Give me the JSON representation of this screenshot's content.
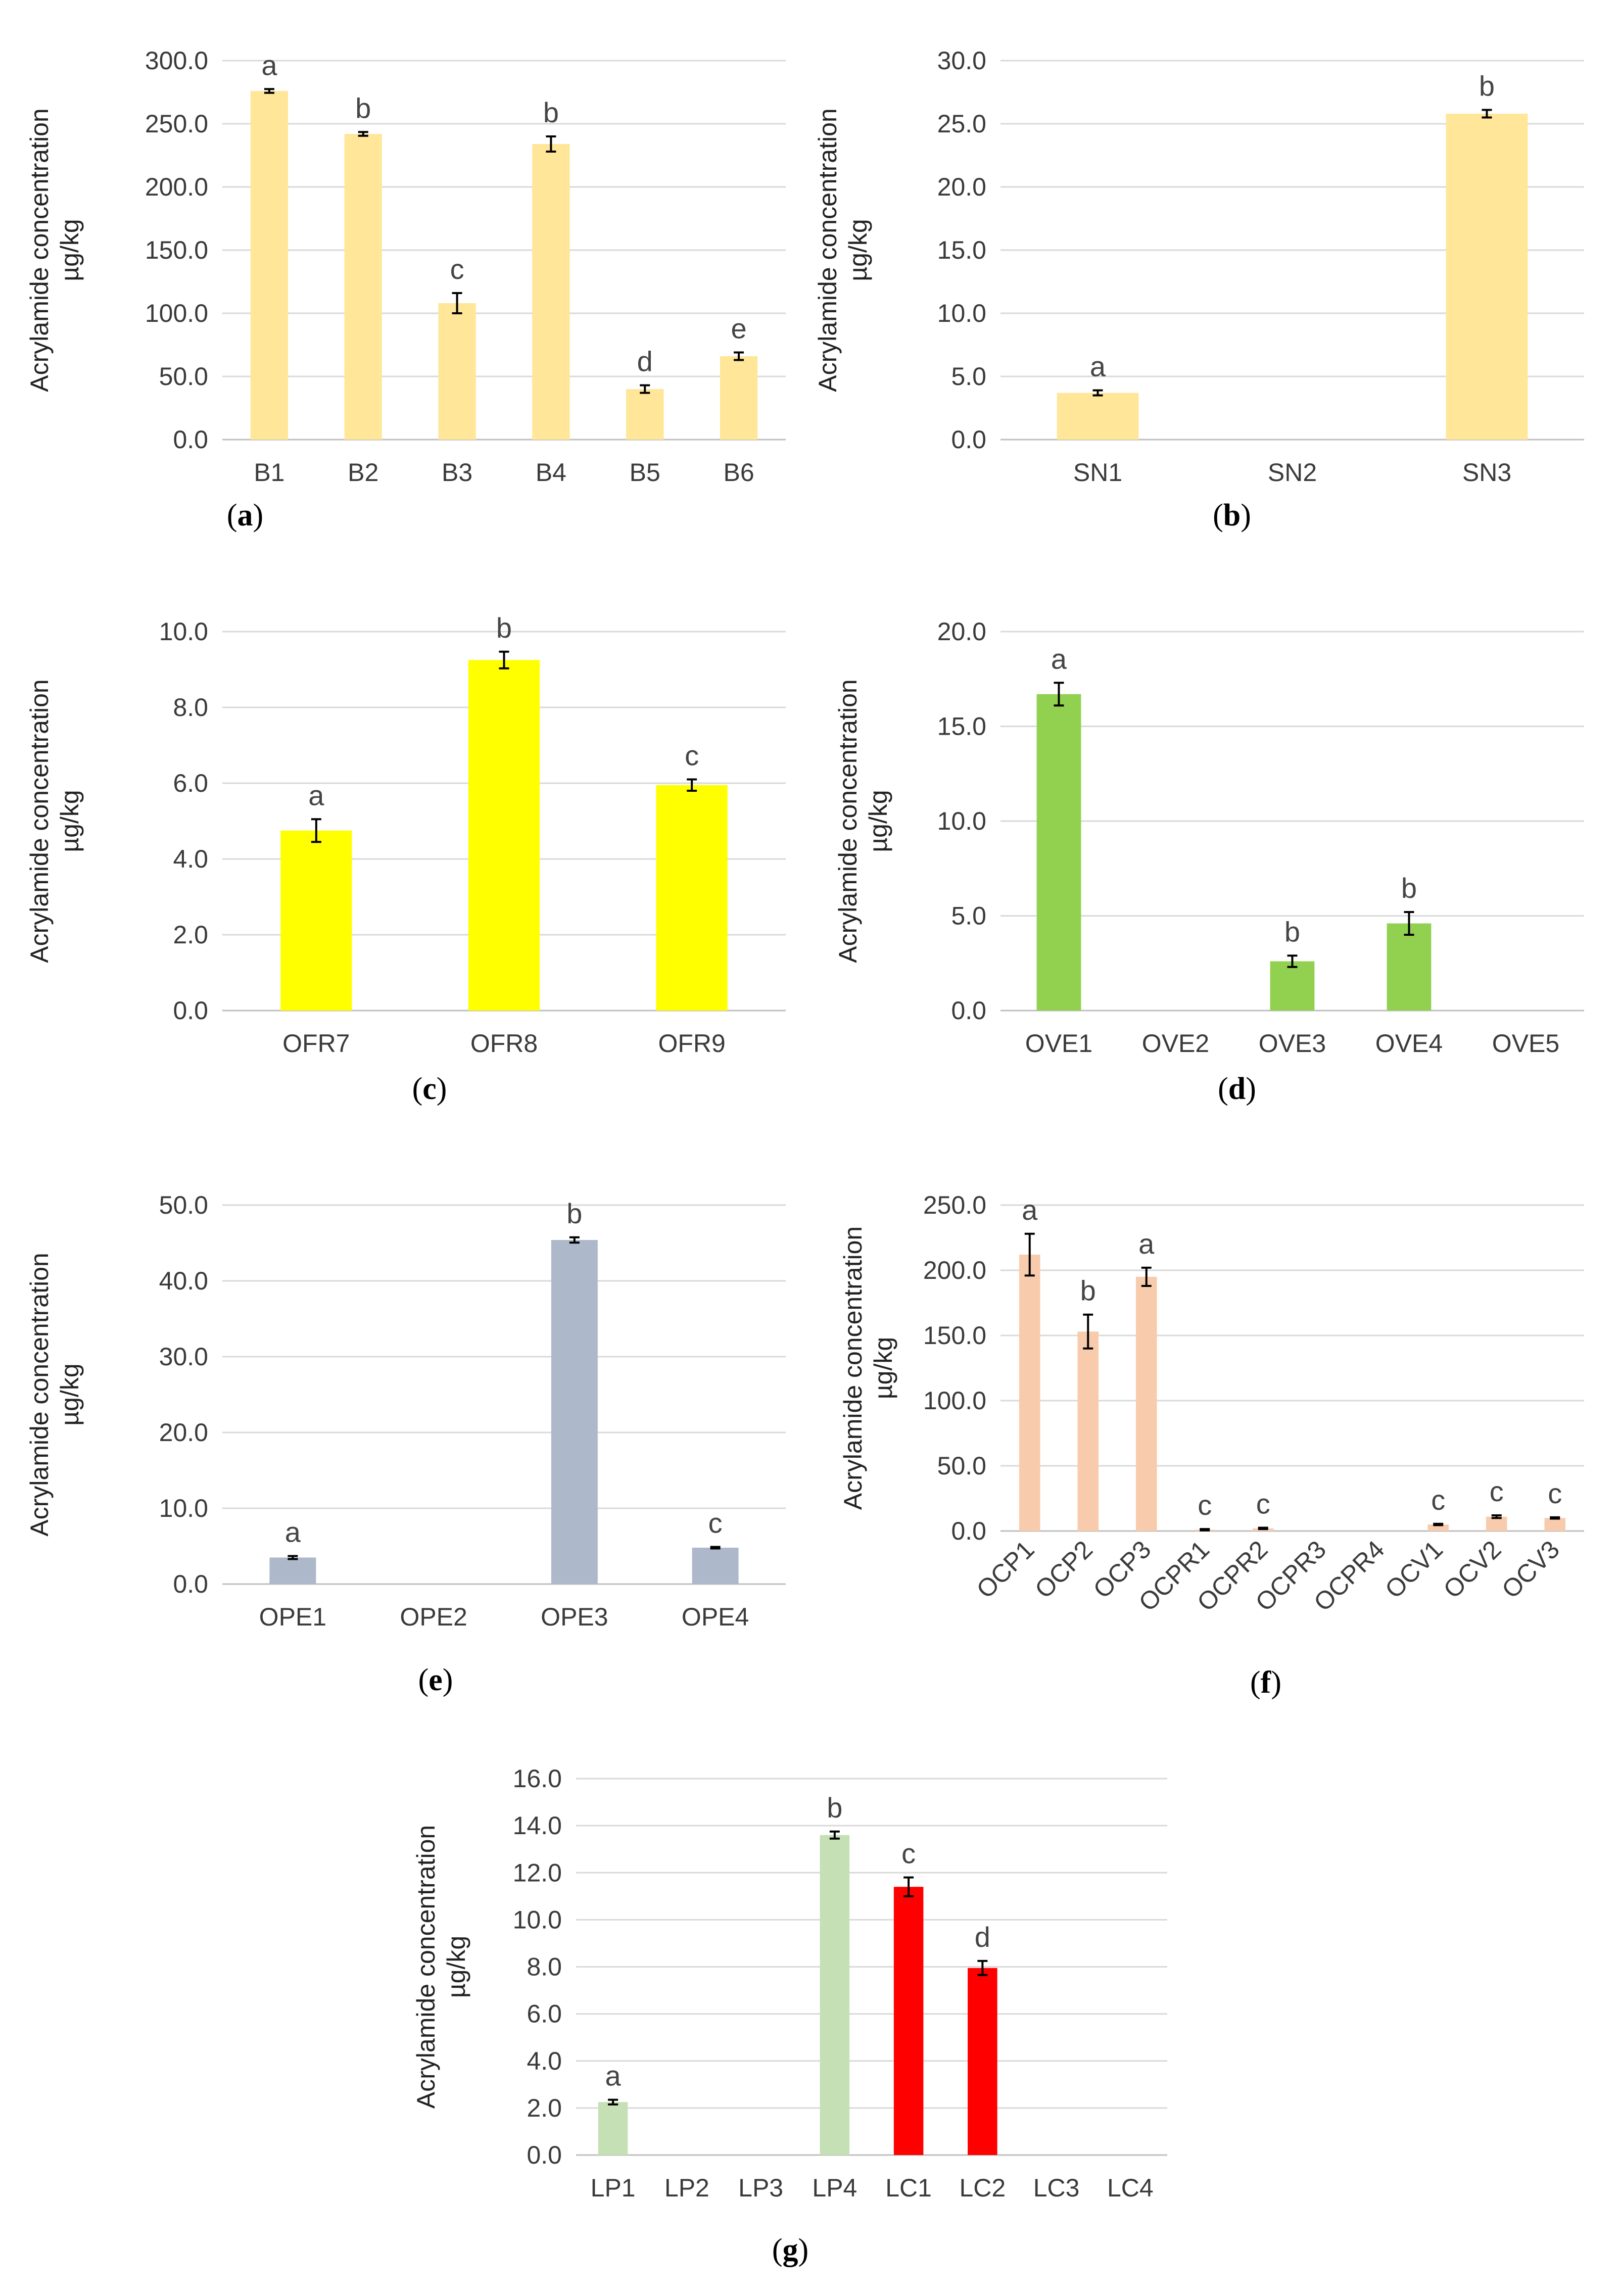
{
  "chart_data": [
    {
      "id": "a",
      "type": "bar",
      "panel_label": "a",
      "ylabel_line1": "Acrylamide concentration",
      "ylabel_line2": "µg/kg",
      "ylim": [
        0,
        300
      ],
      "yticks": [
        "0.0",
        "50.0",
        "100.0",
        "150.0",
        "200.0",
        "250.0",
        "300.0"
      ],
      "ytick_values": [
        0,
        50,
        100,
        150,
        200,
        250,
        300
      ],
      "categories": [
        "B1",
        "B2",
        "B3",
        "B4",
        "B5",
        "B6"
      ],
      "values": [
        276,
        242,
        108,
        234,
        40,
        66
      ],
      "errors": [
        1.5,
        1.5,
        8,
        6,
        3,
        3
      ],
      "letters": [
        "a",
        "b",
        "c",
        "b",
        "d",
        "e"
      ],
      "colors": [
        "#ffe699",
        "#ffe699",
        "#ffe699",
        "#ffe699",
        "#ffe699",
        "#ffe699"
      ]
    },
    {
      "id": "b",
      "type": "bar",
      "panel_label": "b",
      "ylabel_line1": "Acrylamide concentration",
      "ylabel_line2": "µg/kg",
      "ylim": [
        0,
        30
      ],
      "yticks": [
        "0.0",
        "5.0",
        "10.0",
        "15.0",
        "20.0",
        "25.0",
        "30.0"
      ],
      "ytick_values": [
        0,
        5,
        10,
        15,
        20,
        25,
        30
      ],
      "categories": [
        "SN1",
        "SN2",
        "SN3"
      ],
      "values": [
        3.7,
        0,
        25.8
      ],
      "errors": [
        0.2,
        0,
        0.3
      ],
      "letters": [
        "a",
        "",
        "b"
      ],
      "colors": [
        "#ffe699",
        "#ffe699",
        "#ffe699"
      ]
    },
    {
      "id": "c",
      "type": "bar",
      "panel_label": "c",
      "ylabel_line1": "Acrylamide concentration",
      "ylabel_line2": "µg/kg",
      "ylim": [
        0,
        10
      ],
      "yticks": [
        "0.0",
        "2.0",
        "4.0",
        "6.0",
        "8.0",
        "10.0"
      ],
      "ytick_values": [
        0,
        2,
        4,
        6,
        8,
        10
      ],
      "categories": [
        "OFR7",
        "OFR8",
        "OFR9"
      ],
      "values": [
        4.75,
        9.25,
        5.95
      ],
      "errors": [
        0.3,
        0.22,
        0.15
      ],
      "letters": [
        "a",
        "b",
        "c"
      ],
      "colors": [
        "#ffff00",
        "#ffff00",
        "#ffff00"
      ]
    },
    {
      "id": "d",
      "type": "bar",
      "panel_label": "d",
      "ylabel_line1": "Acrylamide concentration",
      "ylabel_line2": "µg/kg",
      "ylim": [
        0,
        20
      ],
      "yticks": [
        "0.0",
        "5.0",
        "10.0",
        "15.0",
        "20.0"
      ],
      "ytick_values": [
        0,
        5,
        10,
        15,
        20
      ],
      "categories": [
        "OVE1",
        "OVE2",
        "OVE3",
        "OVE4",
        "OVE5"
      ],
      "values": [
        16.7,
        0,
        2.6,
        4.6,
        0
      ],
      "errors": [
        0.6,
        0,
        0.3,
        0.6,
        0
      ],
      "letters": [
        "a",
        "",
        "b",
        "b",
        ""
      ],
      "colors": [
        "#92d050",
        "#92d050",
        "#92d050",
        "#92d050",
        "#92d050"
      ]
    },
    {
      "id": "e",
      "type": "bar",
      "panel_label": "e",
      "ylabel_line1": "Acrylamide concentration",
      "ylabel_line2": "µg/kg",
      "ylim": [
        0,
        50
      ],
      "yticks": [
        "0.0",
        "10.0",
        "20.0",
        "30.0",
        "40.0",
        "50.0"
      ],
      "ytick_values": [
        0,
        10,
        20,
        30,
        40,
        50
      ],
      "categories": [
        "OPE1",
        "OPE2",
        "OPE3",
        "OPE4"
      ],
      "values": [
        3.5,
        0,
        45.4,
        4.8
      ],
      "errors": [
        0.2,
        0,
        0.35,
        0.1
      ],
      "letters": [
        "a",
        "",
        "b",
        "c"
      ],
      "colors": [
        "#adb9ca",
        "#adb9ca",
        "#adb9ca",
        "#adb9ca"
      ]
    },
    {
      "id": "f",
      "type": "bar",
      "panel_label": "f",
      "ylabel_line1": "Acrylamide concentration",
      "ylabel_line2": "µg/kg",
      "ylim": [
        0,
        250
      ],
      "yticks": [
        "0.0",
        "50.0",
        "100.0",
        "150.0",
        "200.0",
        "250.0"
      ],
      "ytick_values": [
        0,
        50,
        100,
        150,
        200,
        250
      ],
      "categories": [
        "OCP1",
        "OCP2",
        "OCP3",
        "OCPR1",
        "OCPR2",
        "OCPR3",
        "OCPR4",
        "OCV1",
        "OCV2",
        "OCV3"
      ],
      "values": [
        212,
        153,
        195,
        1,
        2,
        0,
        0,
        5,
        11,
        10
      ],
      "errors": [
        16,
        13,
        7,
        0.5,
        0.5,
        0,
        0,
        0.5,
        1,
        0.5
      ],
      "letters": [
        "a",
        "b",
        "a",
        "c",
        "c",
        "",
        "",
        "c",
        "c",
        "c"
      ],
      "colors": [
        "#f8cbad",
        "#f8cbad",
        "#f8cbad",
        "#f8cbad",
        "#f8cbad",
        "#f8cbad",
        "#f8cbad",
        "#f8cbad",
        "#f8cbad",
        "#f8cbad"
      ]
    },
    {
      "id": "g",
      "type": "bar",
      "panel_label": "g",
      "ylabel_line1": "Acrylamide concentration",
      "ylabel_line2": "µg/kg",
      "ylim": [
        0,
        16
      ],
      "yticks": [
        "0.0",
        "2.0",
        "4.0",
        "6.0",
        "8.0",
        "10.0",
        "12.0",
        "14.0",
        "16.0"
      ],
      "ytick_values": [
        0,
        2,
        4,
        6,
        8,
        10,
        12,
        14,
        16
      ],
      "categories": [
        "LP1",
        "LP2",
        "LP3",
        "LP4",
        "LC1",
        "LC2",
        "LC3",
        "LC4"
      ],
      "values": [
        2.25,
        0,
        0,
        13.6,
        11.4,
        7.95,
        0,
        0
      ],
      "errors": [
        0.1,
        0,
        0,
        0.15,
        0.4,
        0.3,
        0,
        0
      ],
      "letters": [
        "a",
        "",
        "",
        "b",
        "c",
        "d",
        "",
        ""
      ],
      "colors": [
        "#c5e0b4",
        "#c5e0b4",
        "#c5e0b4",
        "#c5e0b4",
        "#ff0000",
        "#ff0000",
        "#ff0000",
        "#ff0000"
      ]
    }
  ]
}
